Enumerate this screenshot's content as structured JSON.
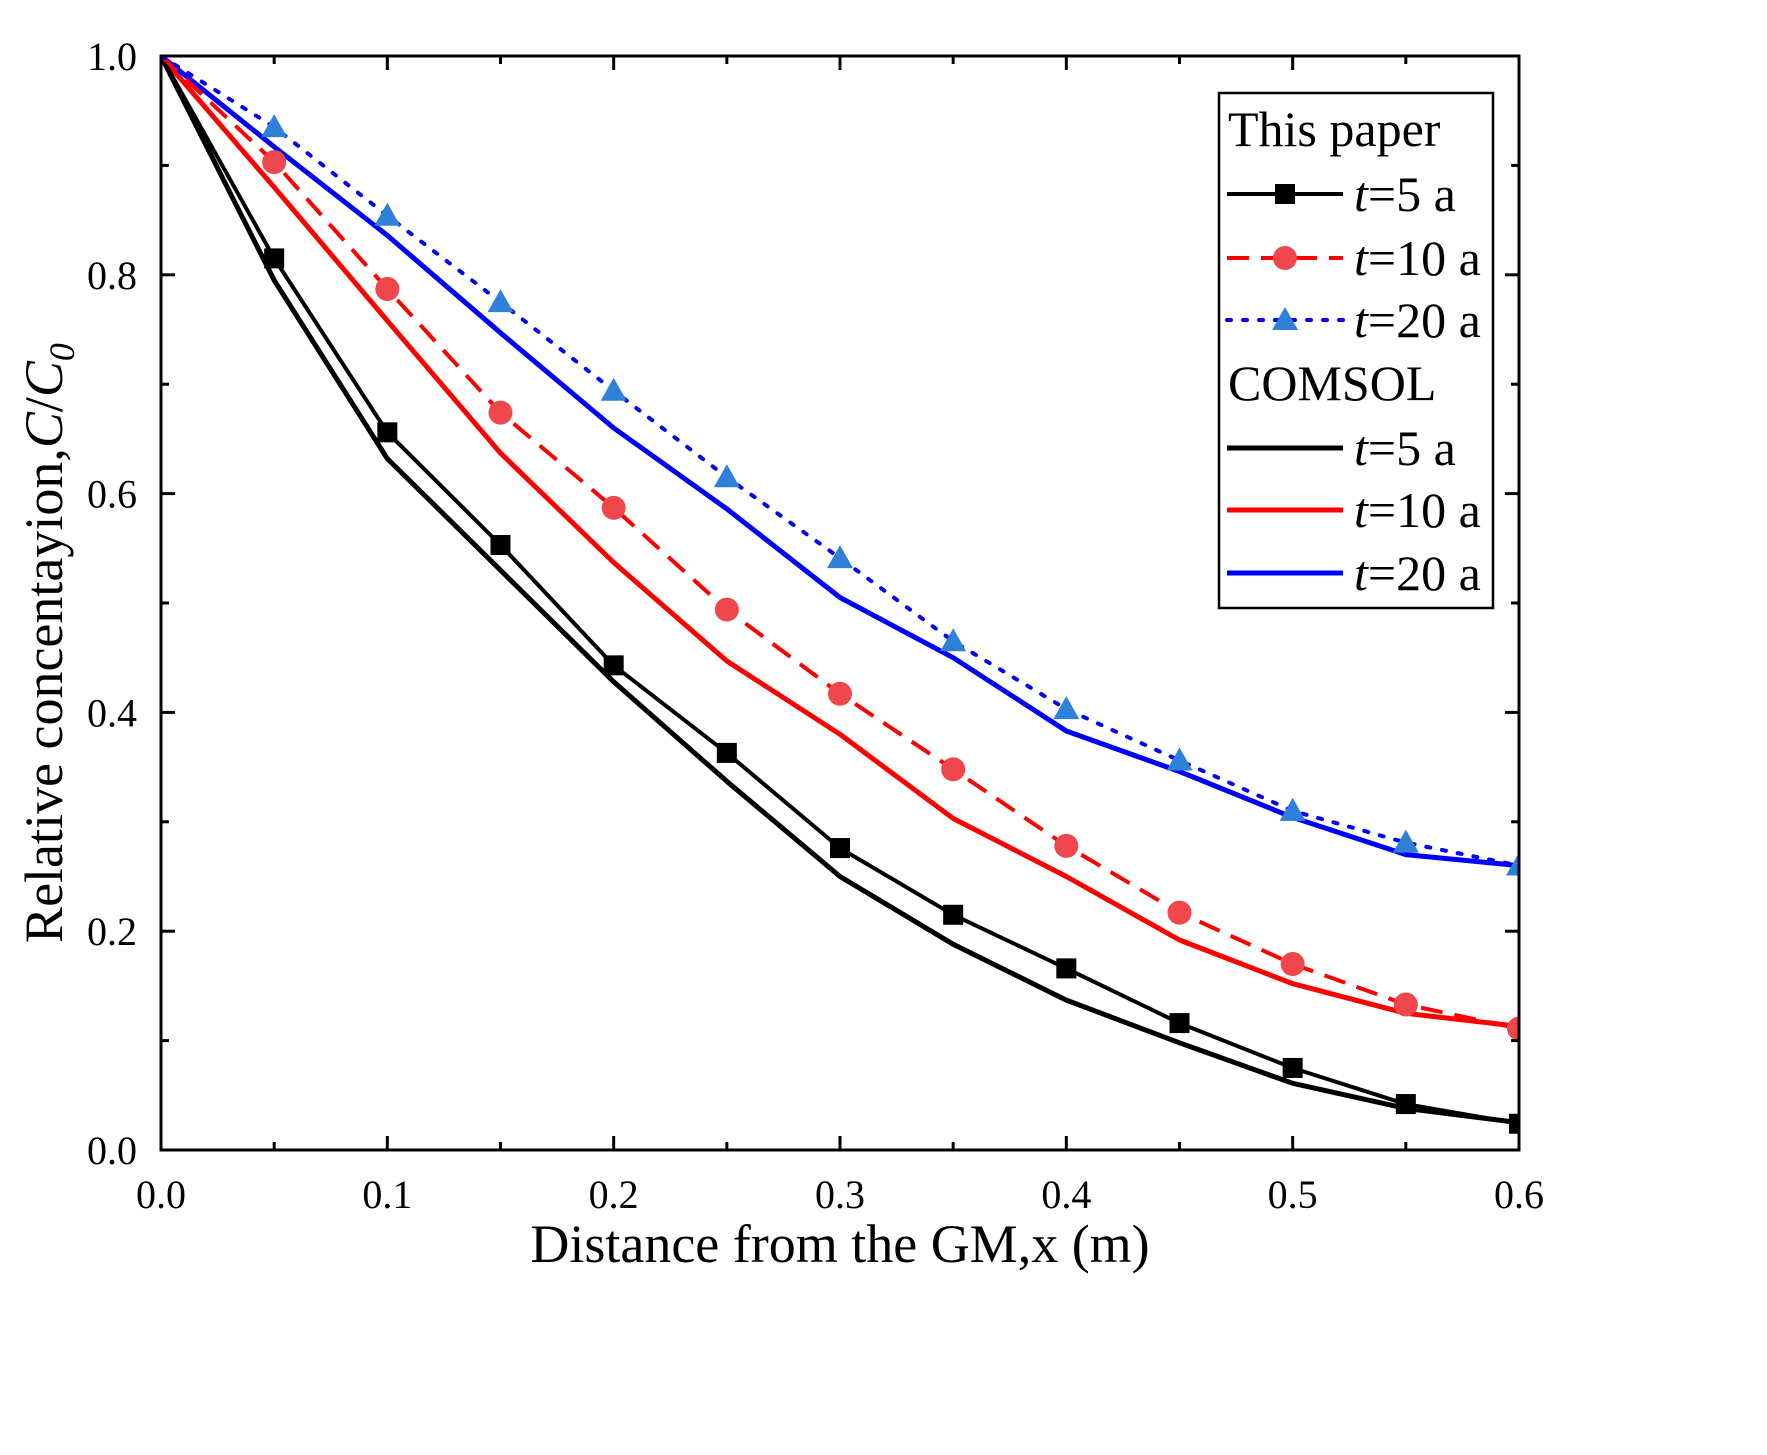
{
  "chart_data": {
    "type": "line",
    "xlabel": "Distance from the GM,x (m)",
    "ylabel_parts": [
      "Relative concentayion,",
      "C",
      "/",
      "C",
      "0"
    ],
    "xlim": [
      0.0,
      0.6
    ],
    "ylim": [
      0.0,
      1.0
    ],
    "xticks": [
      "0.0",
      "0.1",
      "0.2",
      "0.3",
      "0.4",
      "0.5",
      "0.6"
    ],
    "yticks": [
      "0.0",
      "0.2",
      "0.4",
      "0.6",
      "0.8",
      "1.0"
    ],
    "grid": false,
    "legend_position": "top-right",
    "legend": {
      "group1": "This paper",
      "group2": "COMSOL",
      "t_symbol": "t",
      "labels": [
        "=5 a",
        "=10 a",
        "=20 a"
      ]
    },
    "x": [
      0.0,
      0.05,
      0.1,
      0.15,
      0.2,
      0.25,
      0.3,
      0.35,
      0.4,
      0.45,
      0.5,
      0.55,
      0.6
    ],
    "series": [
      {
        "group": "This paper",
        "color": "#000000",
        "line": "solid",
        "marker": "square",
        "values": [
          1.0,
          0.815,
          0.656,
          0.553,
          0.443,
          0.363,
          0.276,
          0.215,
          0.166,
          0.116,
          0.075,
          0.042,
          0.024
        ]
      },
      {
        "group": "This paper",
        "color": "#ff0000",
        "marker_color": "#f0474c",
        "line": "dashed",
        "marker": "circle",
        "values": [
          1.0,
          0.903,
          0.787,
          0.674,
          0.587,
          0.494,
          0.417,
          0.348,
          0.278,
          0.217,
          0.17,
          0.133,
          0.111
        ]
      },
      {
        "group": "This paper",
        "color": "#0000ff",
        "marker_color": "#2f80d8",
        "line": "dotted",
        "marker": "triangle",
        "values": [
          1.0,
          0.935,
          0.854,
          0.775,
          0.694,
          0.615,
          0.541,
          0.465,
          0.403,
          0.356,
          0.31,
          0.281,
          0.26
        ]
      },
      {
        "group": "COMSOL",
        "color": "#000000",
        "line": "solid",
        "values": [
          1.0,
          0.795,
          0.632,
          0.53,
          0.428,
          0.337,
          0.25,
          0.188,
          0.137,
          0.098,
          0.061,
          0.038,
          0.025
        ]
      },
      {
        "group": "COMSOL",
        "color": "#ff0000",
        "line": "solid",
        "values": [
          1.0,
          0.88,
          0.758,
          0.637,
          0.537,
          0.447,
          0.38,
          0.303,
          0.25,
          0.192,
          0.152,
          0.125,
          0.113
        ]
      },
      {
        "group": "COMSOL",
        "color": "#0000ff",
        "line": "solid",
        "values": [
          1.0,
          0.917,
          0.836,
          0.747,
          0.66,
          0.586,
          0.505,
          0.45,
          0.383,
          0.346,
          0.304,
          0.27,
          0.26
        ]
      }
    ]
  }
}
